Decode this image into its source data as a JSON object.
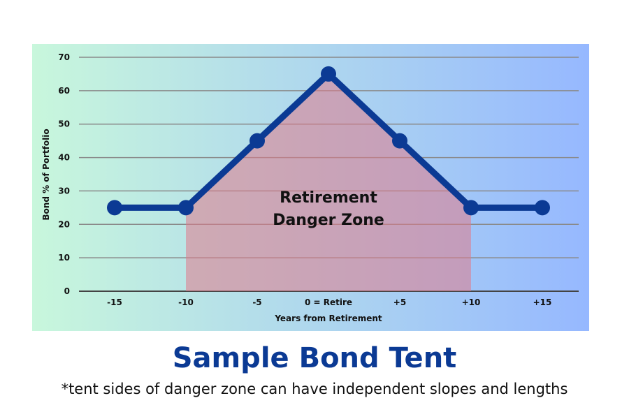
{
  "title": "Sample Bond Tent",
  "subtitle": "*tent sides of danger zone can have independent slopes and lengths",
  "colors": {
    "line": "#0b3a94",
    "zone_fill": "#e07a8a",
    "bg_left": "#c8f7dc",
    "bg_right": "#96b8ff",
    "title": "#0b3a94"
  },
  "chart_data": {
    "type": "line",
    "xlabel": "Years from Retirement",
    "ylabel": "Bond % of Portfolio",
    "categories": [
      "-15",
      "-10",
      "-5",
      "0 = Retire",
      "+5",
      "+10",
      "+15"
    ],
    "values": [
      25,
      25,
      45,
      65,
      45,
      25,
      25
    ],
    "ylim": [
      0,
      70
    ],
    "yticks": [
      0,
      10,
      20,
      30,
      40,
      50,
      60,
      70
    ],
    "grid": true,
    "annotation": {
      "line1": "Retirement",
      "line2": "Danger Zone",
      "range_categories": [
        "-10",
        "+10"
      ]
    }
  }
}
